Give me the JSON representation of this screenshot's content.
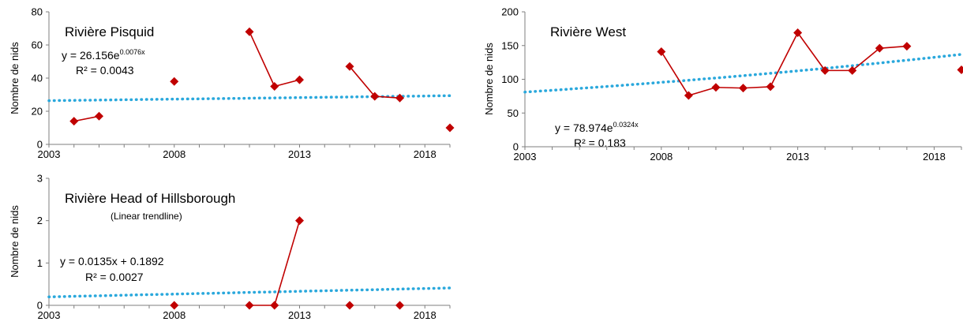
{
  "chart_data": [
    {
      "type": "line",
      "title": "Rivière Pisquid",
      "subtitle": "",
      "xlabel": "",
      "ylabel": "Nombre de nids",
      "xlim": [
        2003,
        2019
      ],
      "ylim": [
        0,
        80
      ],
      "xticks": [
        2003,
        2008,
        2013,
        2018
      ],
      "yticks": [
        0,
        20,
        40,
        60,
        80
      ],
      "grid": false,
      "series": [
        {
          "x": [
            2004,
            2005,
            2008,
            2011,
            2012,
            2013,
            2015,
            2016,
            2017,
            2019
          ],
          "y": [
            14,
            17,
            38,
            68,
            35,
            39,
            47,
            29,
            28,
            10
          ],
          "color": "#c00000"
        }
      ],
      "trendline": {
        "type": "exponential",
        "equation_prefix": "y = 26.156e",
        "equation_exponent": "0.0076x",
        "r2": "R² = 0.0043",
        "y_start": 26.4,
        "y_end": 29.4,
        "color": "#2aa8dc"
      }
    },
    {
      "type": "line",
      "title": "Rivière West",
      "subtitle": "",
      "xlabel": "",
      "ylabel": "Nombre de nids",
      "xlim": [
        2003,
        2019
      ],
      "ylim": [
        0,
        200
      ],
      "xticks": [
        2003,
        2008,
        2013,
        2018
      ],
      "yticks": [
        0,
        50,
        100,
        150,
        200
      ],
      "grid": false,
      "series": [
        {
          "x": [
            2008,
            2009,
            2010,
            2011,
            2012,
            2013,
            2014,
            2015,
            2016,
            2017,
            2019
          ],
          "y": [
            141,
            76,
            88,
            87,
            89,
            169,
            113,
            113,
            146,
            149,
            114
          ],
          "color": "#c00000"
        }
      ],
      "trendline": {
        "type": "exponential",
        "equation_prefix": "y = 78.974e",
        "equation_exponent": "0.0324x",
        "r2": "R² = 0.183",
        "y_start": 81,
        "y_end": 137,
        "color": "#2aa8dc"
      }
    },
    {
      "type": "line",
      "title": "Rivière Head of Hillsborough",
      "subtitle": "(Linear trendline)",
      "xlabel": "",
      "ylabel": "Nombre de nids",
      "xlim": [
        2003,
        2019
      ],
      "ylim": [
        0,
        3
      ],
      "xticks": [
        2003,
        2008,
        2013,
        2018
      ],
      "yticks": [
        0,
        1,
        2,
        3
      ],
      "grid": false,
      "series": [
        {
          "x": [
            2008,
            2011,
            2012,
            2013,
            2015,
            2017
          ],
          "y": [
            0,
            0,
            0,
            2,
            0,
            0
          ],
          "color": "#c00000"
        }
      ],
      "trendline": {
        "type": "linear",
        "equation_prefix": "y = 0.0135x + 0.1892",
        "equation_exponent": "",
        "r2": "R² = 0.0027",
        "y_start": 0.2,
        "y_end": 0.41,
        "color": "#2aa8dc"
      }
    }
  ]
}
